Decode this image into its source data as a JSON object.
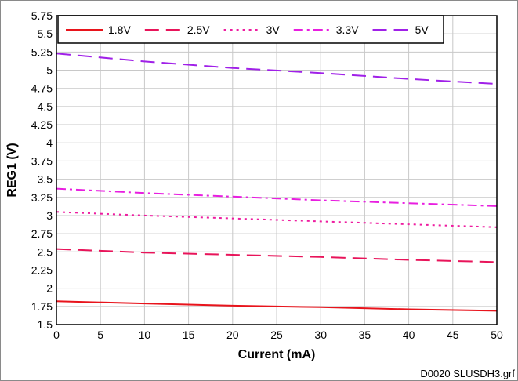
{
  "chart_data": {
    "type": "line",
    "title": "",
    "xlabel": "Current (mA)",
    "ylabel": "REG1 (V)",
    "xlim": [
      0,
      50
    ],
    "ylim": [
      1.5,
      5.75
    ],
    "x_ticks": [
      0,
      5,
      10,
      15,
      20,
      25,
      30,
      35,
      40,
      45,
      50
    ],
    "y_ticks": [
      1.5,
      1.75,
      2,
      2.25,
      2.5,
      2.75,
      3,
      3.25,
      3.5,
      3.75,
      4,
      4.25,
      4.5,
      4.75,
      5,
      5.25,
      5.5,
      5.75
    ],
    "grid": true,
    "legend_position": "top-left",
    "series": [
      {
        "name": "1.8V",
        "color": "#e8141c",
        "dash": "solid",
        "x": [
          0,
          10,
          20,
          30,
          40,
          50
        ],
        "y": [
          1.82,
          1.79,
          1.76,
          1.74,
          1.71,
          1.69
        ]
      },
      {
        "name": "2.5V",
        "color": "#e8145a",
        "dash": "long-dash",
        "x": [
          0,
          10,
          20,
          30,
          40,
          50
        ],
        "y": [
          2.54,
          2.49,
          2.46,
          2.43,
          2.39,
          2.36
        ]
      },
      {
        "name": "3V",
        "color": "#ee1ca0",
        "dash": "dot",
        "x": [
          0,
          10,
          20,
          30,
          40,
          50
        ],
        "y": [
          3.05,
          3.0,
          2.96,
          2.92,
          2.88,
          2.84
        ]
      },
      {
        "name": "3.3V",
        "color": "#e81ee0",
        "dash": "dash-dot",
        "x": [
          0,
          10,
          20,
          30,
          40,
          50
        ],
        "y": [
          3.37,
          3.31,
          3.26,
          3.21,
          3.17,
          3.13
        ]
      },
      {
        "name": "5V",
        "color": "#a020e8",
        "dash": "long-dash",
        "x": [
          0,
          10,
          20,
          30,
          40,
          50
        ],
        "y": [
          5.23,
          5.12,
          5.03,
          4.96,
          4.88,
          4.81
        ]
      }
    ]
  },
  "footer": {
    "reference": "D0020  SLUSDH3.grf"
  }
}
